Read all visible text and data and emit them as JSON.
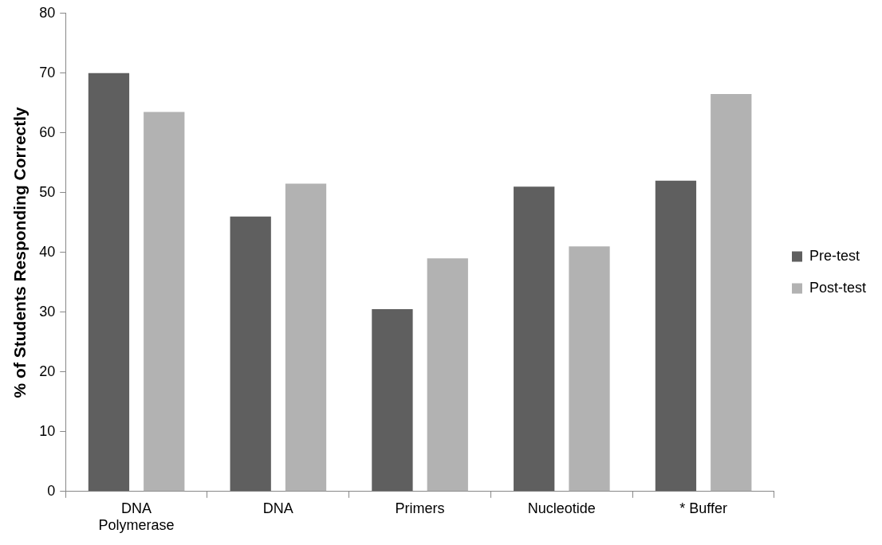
{
  "chart_data": {
    "type": "bar",
    "ylabel": "% of Students Responding Correctly",
    "categories": [
      "DNA Polymerase",
      "DNA",
      "Primers",
      "Nucleotide",
      "* Buffer"
    ],
    "series": [
      {
        "name": "Pre-test",
        "color": "#5f5f5f",
        "values": [
          70,
          46,
          30.5,
          51,
          52
        ]
      },
      {
        "name": "Post-test",
        "color": "#b2b2b2",
        "values": [
          63.5,
          51.5,
          39,
          41,
          66.5
        ]
      }
    ],
    "ylim": [
      0,
      80
    ],
    "yticks": [
      0,
      10,
      20,
      30,
      40,
      50,
      60,
      70,
      80
    ],
    "grid": false,
    "legend": "right"
  }
}
